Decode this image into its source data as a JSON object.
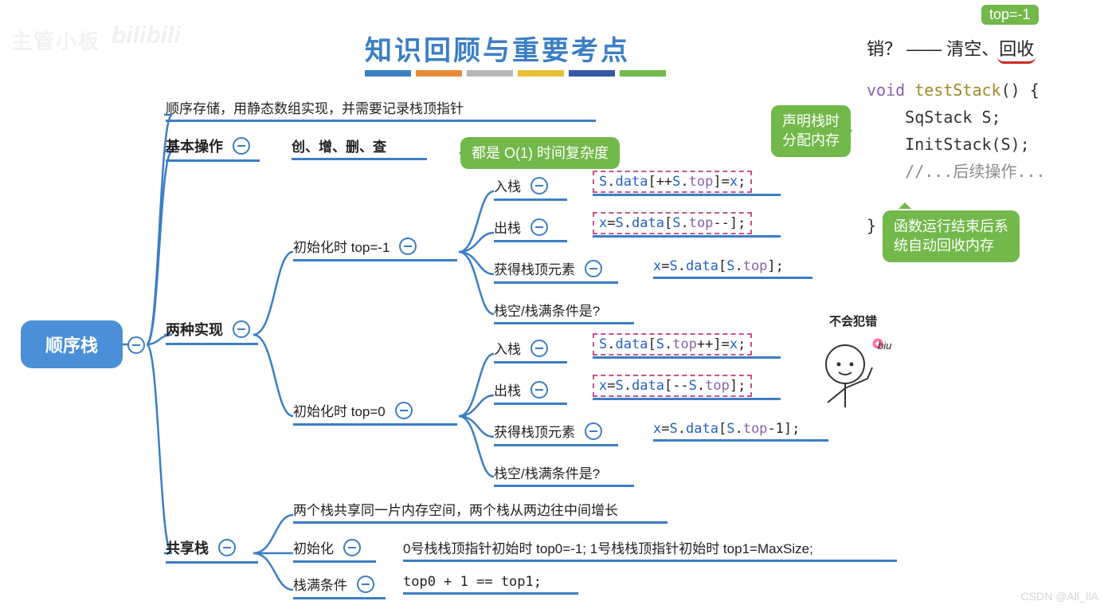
{
  "title": {
    "text": "知识回顾与重要考点",
    "color": "#3c7ec4",
    "fontsize": 34
  },
  "stripes": [
    "#3c7ec4",
    "#e98a3a",
    "#b7b7b7",
    "#e8bf36",
    "#3658a6",
    "#72b84a"
  ],
  "root": {
    "label": "顺序栈",
    "bg": "#4a8fd8",
    "color": "#ffffff"
  },
  "wm": {
    "a": "主管小板",
    "b": "bilibili"
  },
  "csdn": "CSDN @All_IlA",
  "nodes": {
    "storage": "顺序存储，用静态数组实现，并需要记录栈顶指针",
    "basic": {
      "label": "基本操作",
      "detail": "创、增、删、查"
    },
    "basic_call": "都是 O(1) 时间复杂度",
    "impl": "两种实现",
    "init_neg1": "初始化时 top=-1",
    "init_0": "初始化时 top=0",
    "push": "入栈",
    "pop": "出栈",
    "peek": "获得栈顶元素",
    "cond": "栈空/栈满条件是?",
    "share": "共享栈",
    "share_desc": "两个栈共享同一片内存空间，两个栈从两边往中间增长",
    "share_init_lbl": "初始化",
    "share_init": "0号栈栈顶指针初始时 top0=-1;   1号栈栈顶指针初始时  top1=MaxSize;",
    "share_full_lbl": "栈满条件",
    "share_full": "top0 + 1 == top1;"
  },
  "code": {
    "a_push": "S.data[++S.top]=x;",
    "a_pop": "x=S.data[S.top--];",
    "a_peek": "x=S.data[S.top];",
    "b_push": "S.data[S.top++]=x;",
    "b_pop": "x=S.data[--S.top];",
    "b_peek": "x=S.data[S.top-1];"
  },
  "annot": {
    "toptag": "top=-1",
    "reclaim_q": "销？ ——",
    "reclaim_a": "清空、",
    "reclaim_b": "回收",
    "decl": "声明栈时\n分配内存",
    "end": "函数运行结束后系\n统自动回收内存",
    "fig_title": "不会犯错",
    "fig_biu": "biu"
  },
  "codeblk": [
    {
      "t": "void",
      "c": "kw"
    },
    {
      "t": " ",
      "c": "op"
    },
    {
      "t": "testStack",
      "c": "fn"
    },
    {
      "t": "() {",
      "c": "op"
    },
    "\n",
    {
      "t": "    SqStack S;",
      "c": "op"
    },
    "\n",
    {
      "t": "    InitStack(S);",
      "c": "op"
    },
    "\n",
    {
      "t": "    //...后续操作...",
      "c": "cmt"
    },
    "\n",
    "\n",
    {
      "t": "}",
      "c": "op"
    }
  ],
  "colors": {
    "line": "#3c7ec4",
    "green": "#72b84a",
    "dash": "#c9528a",
    "code_kw": "#8a5fb0",
    "code_var": "#2460c4",
    "code_fn": "#a08828"
  }
}
